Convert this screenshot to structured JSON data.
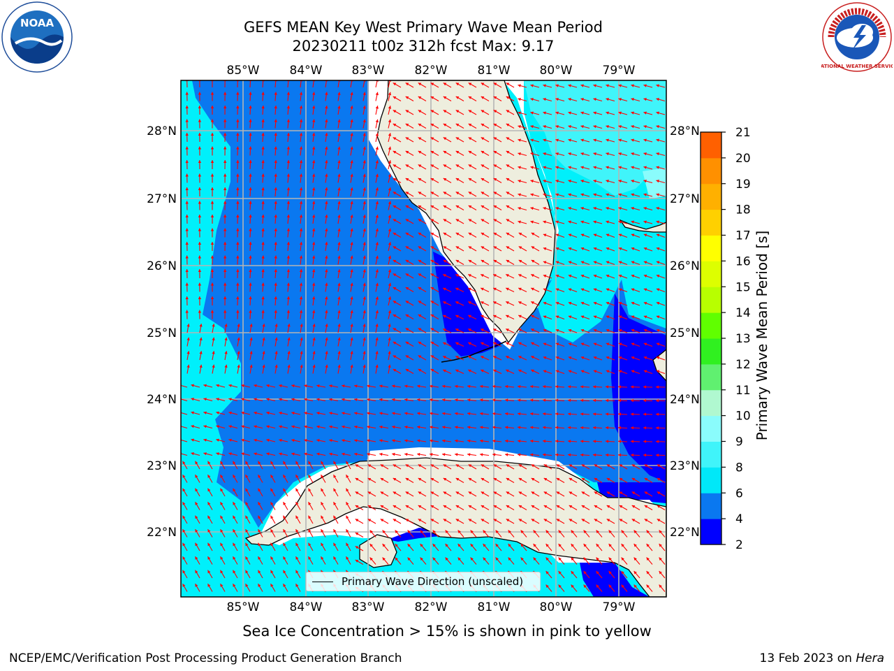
{
  "header": {
    "title": "GEFS MEAN Key West Primary Wave Mean Period",
    "subtitle": "20230211 t00z 312h fcst   Max: 9.17"
  },
  "logos": {
    "left": "NOAA",
    "right": "NATIONAL WEATHER SERVICE"
  },
  "map": {
    "lon_labels": [
      "85°W",
      "84°W",
      "83°W",
      "82°W",
      "81°W",
      "80°W",
      "79°W"
    ],
    "lat_labels": [
      "28°N",
      "27°N",
      "26°N",
      "25°N",
      "24°N",
      "23°N",
      "22°N"
    ],
    "arrow_color": "#ff0000",
    "land_color": "#eeeede",
    "legend_label": "Primary Wave Direction (unscaled)"
  },
  "colorbar": {
    "label": "Primary Wave Mean Period [s]",
    "ticks": [
      "2",
      "4",
      "6",
      "8",
      "9",
      "10",
      "11",
      "12",
      "13",
      "14",
      "15",
      "16",
      "17",
      "18",
      "19",
      "20",
      "21"
    ],
    "colors": [
      "#0000ff",
      "#0a78f0",
      "#00e8f8",
      "#40f4fa",
      "#8afcfc",
      "#b0f8d0",
      "#60f070",
      "#30f020",
      "#60ff00",
      "#b8ff00",
      "#ddff00",
      "#ffff00",
      "#ffd000",
      "#ffb000",
      "#ff9000",
      "#ff6000",
      "#ff3000",
      "#ff0000"
    ]
  },
  "notes": {
    "sea_ice": "Sea Ice Concentration > 15% is shown in pink to yellow",
    "footer_left": "NCEP/EMC/Verification Post Processing Product Generation Branch",
    "footer_date": "13 Feb 2023 on ",
    "footer_host": "Hera"
  }
}
